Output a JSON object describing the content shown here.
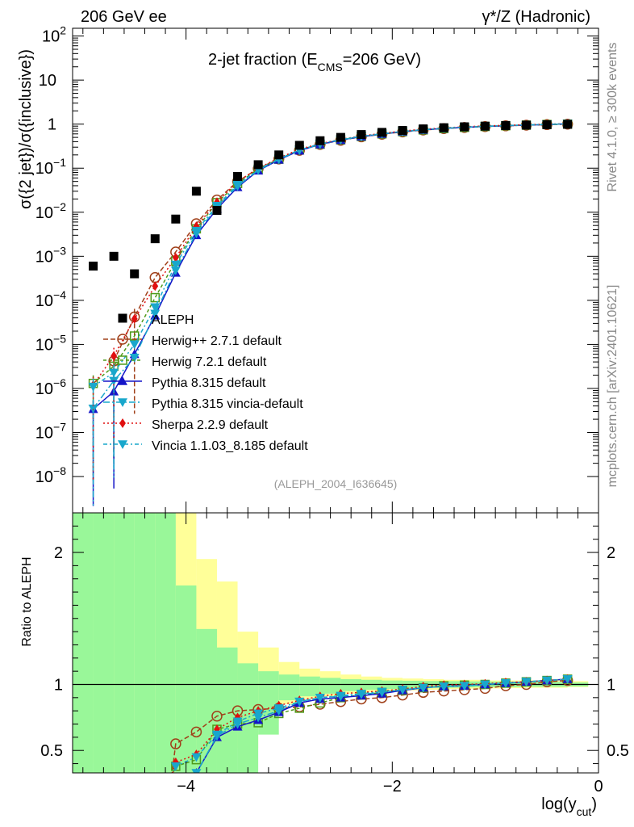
{
  "header": {
    "left": "206 GeV ee",
    "right": "γ*/Z (Hadronic)"
  },
  "side_labels": {
    "rivet": "Rivet 4.1.0, ≥ 300k events",
    "mcplots": "mcplots.cern.ch [arXiv:2401.10621]"
  },
  "chart_data": [
    {
      "type": "scatter",
      "title_main": "2-jet fraction (E",
      "title_sub": "CMS",
      "title_tail": "=206 GeV)",
      "ylabel": "σ({2 jet})/σ({inclusive})",
      "yscale": "log",
      "ylim": [
        1.5e-09,
        150
      ],
      "xlim": [
        -5.1,
        0
      ],
      "y_ticks": [
        {
          "value": 100,
          "base": "10",
          "exp": "2"
        },
        {
          "value": 10,
          "base": "10",
          "exp": ""
        },
        {
          "value": 1,
          "base": "1",
          "exp": ""
        },
        {
          "value": 0.1,
          "base": "10",
          "exp": "−1"
        },
        {
          "value": 0.01,
          "base": "10",
          "exp": "−2"
        },
        {
          "value": 0.001,
          "base": "10",
          "exp": "−3"
        },
        {
          "value": 0.0001,
          "base": "10",
          "exp": "−4"
        },
        {
          "value": 1e-05,
          "base": "10",
          "exp": "−5"
        },
        {
          "value": 1e-06,
          "base": "10",
          "exp": "−6"
        },
        {
          "value": 1e-07,
          "base": "10",
          "exp": "−7"
        },
        {
          "value": 1e-08,
          "base": "10",
          "exp": "−8"
        }
      ],
      "analysis_tag": "(ALEPH_2004_I636645)",
      "x": [
        -4.9,
        -4.7,
        -4.5,
        -4.3,
        -4.1,
        -3.9,
        -3.7,
        -3.5,
        -3.3,
        -3.1,
        -2.9,
        -2.7,
        -2.5,
        -2.3,
        -2.1,
        -1.9,
        -1.7,
        -1.5,
        -1.3,
        -1.1,
        -0.9,
        -0.7,
        -0.5,
        -0.3
      ],
      "data": {
        "name": "ALEPH",
        "values": [
          0.0006,
          0.001,
          0.0004,
          0.0025,
          0.007,
          0.03,
          0.011,
          0.065,
          0.12,
          0.2,
          0.33,
          0.42,
          0.5,
          0.58,
          0.65,
          0.72,
          0.78,
          0.83,
          0.87,
          0.9,
          0.93,
          0.95,
          0.97,
          0.99
        ]
      },
      "series": [
        {
          "name": "Herwig++ 2.7.1 default",
          "color": "#a0401a",
          "marker": "circle-open",
          "dash": "6,3",
          "values": [
            null,
            4.2e-06,
            4.2e-05,
            0.00033,
            0.00125,
            0.0055,
            0.019,
            0.05,
            0.098,
            0.162,
            0.255,
            0.345,
            0.43,
            0.515,
            0.59,
            0.665,
            0.735,
            0.79,
            0.84,
            0.88,
            0.915,
            0.945,
            0.975,
            1.0
          ]
        },
        {
          "name": "Herwig 7.2.1 default",
          "color": "#4f9a1a",
          "marker": "square-open",
          "dash": "4,3",
          "values": [
            1.3e-06,
            3.2e-06,
            1.55e-05,
            0.000115,
            0.00078,
            0.0042,
            0.0165,
            0.045,
            0.095,
            0.16,
            0.26,
            0.35,
            0.44,
            0.525,
            0.6,
            0.675,
            0.74,
            0.795,
            0.845,
            0.885,
            0.92,
            0.95,
            0.98,
            1.0
          ]
        },
        {
          "name": "Pythia 8.315 default",
          "color": "#1515c8",
          "marker": "triangle-up",
          "dash": "",
          "values": [
            3.4e-07,
            8.5e-07,
            6e-06,
            4.5e-05,
            0.00042,
            0.003,
            0.012,
            0.037,
            0.088,
            0.155,
            0.25,
            0.345,
            0.435,
            0.52,
            0.595,
            0.675,
            0.74,
            0.8,
            0.845,
            0.89,
            0.92,
            0.95,
            0.98,
            1.02
          ]
        },
        {
          "name": "Pythia 8.315 vincia-default",
          "color": "#19a7cc",
          "marker": "triangle-down",
          "dash": "8,3,2,3",
          "values": [
            3.5e-07,
            1.5e-06,
            5e-06,
            5e-05,
            0.00048,
            0.0033,
            0.013,
            0.039,
            0.09,
            0.158,
            0.255,
            0.35,
            0.44,
            0.525,
            0.6,
            0.68,
            0.745,
            0.8,
            0.85,
            0.89,
            0.925,
            0.955,
            0.985,
            1.02
          ]
        },
        {
          "name": "Sherpa 2.2.9 default",
          "color": "#e01010",
          "marker": "diamond",
          "dash": "2,3",
          "values": [
            1.2e-06,
            5.5e-06,
            3.8e-05,
            0.00021,
            0.00093,
            0.0048,
            0.017,
            0.049,
            0.1,
            0.17,
            0.27,
            0.36,
            0.45,
            0.54,
            0.615,
            0.695,
            0.765,
            0.82,
            0.87,
            0.91,
            0.94,
            0.97,
            1.0,
            1.02
          ]
        },
        {
          "name": "Vincia 1.1.03_8.185 default",
          "color": "#19a7cc",
          "marker": "triangle-down",
          "dash": "5,3,2,3",
          "values": [
            1.1e-06,
            2.3e-06,
            1e-05,
            7e-05,
            0.00065,
            0.0038,
            0.014,
            0.042,
            0.093,
            0.162,
            0.26,
            0.355,
            0.445,
            0.53,
            0.605,
            0.685,
            0.75,
            0.805,
            0.855,
            0.895,
            0.93,
            0.96,
            0.99,
            1.02
          ]
        }
      ]
    },
    {
      "type": "line",
      "ylabel": "Ratio to ALEPH",
      "xlabel_main": "log(y",
      "xlabel_sub": "cut",
      "xlabel_tail": ")",
      "ylim": [
        0.33,
        2.3
      ],
      "xlim": [
        -5.1,
        0
      ],
      "y_ticks": [
        {
          "value": 0.5,
          "label": "0.5"
        },
        {
          "value": 1,
          "label": "1"
        },
        {
          "value": 2,
          "label": "2"
        }
      ],
      "x_ticks": [
        {
          "value": -4,
          "label": "−4"
        },
        {
          "value": -2,
          "label": "−2"
        },
        {
          "value": 0,
          "label": "0"
        }
      ],
      "band_edges": [
        -5.1,
        -4.9,
        -4.7,
        -4.5,
        -4.3,
        -4.1,
        -3.9,
        -3.7,
        -3.5,
        -3.3,
        -3.1,
        -2.9,
        -2.7,
        -2.5,
        -2.3,
        -2.1,
        -1.9,
        -1.7,
        -1.5,
        -1.3,
        -1.1,
        -0.9,
        -0.7,
        -0.5,
        -0.3,
        -0.1
      ],
      "band_stat": [
        [
          0.33,
          2.3
        ],
        [
          0.33,
          2.3
        ],
        [
          0.33,
          2.3
        ],
        [
          0.33,
          2.3
        ],
        [
          0.33,
          2.3
        ],
        [
          0.33,
          1.75
        ],
        [
          0.33,
          1.42
        ],
        [
          0.33,
          1.28
        ],
        [
          0.33,
          1.16
        ],
        [
          0.62,
          1.1
        ],
        [
          0.88,
          1.075
        ],
        [
          0.91,
          1.06
        ],
        [
          0.93,
          1.05
        ],
        [
          0.95,
          1.04
        ],
        [
          0.96,
          1.035
        ],
        [
          0.965,
          1.03
        ],
        [
          0.97,
          1.028
        ],
        [
          0.975,
          1.026
        ],
        [
          0.975,
          1.025
        ],
        [
          0.978,
          1.023
        ],
        [
          0.98,
          1.022
        ],
        [
          0.98,
          1.02
        ],
        [
          0.982,
          1.02
        ],
        [
          0.982,
          1.02
        ],
        [
          0.985,
          1.015
        ]
      ],
      "band_syst": [
        [
          0.33,
          2.3
        ],
        [
          0.4,
          2.3
        ],
        [
          0.33,
          2.3
        ],
        [
          0.4,
          2.3
        ],
        [
          0.33,
          2.3
        ],
        [
          0.33,
          2.3
        ],
        [
          0.4,
          1.95
        ],
        [
          0.4,
          1.78
        ],
        [
          0.52,
          1.4
        ],
        [
          0.72,
          1.28
        ],
        [
          0.85,
          1.17
        ],
        [
          0.89,
          1.12
        ],
        [
          0.91,
          1.1
        ],
        [
          0.93,
          1.075
        ],
        [
          0.94,
          1.06
        ],
        [
          0.95,
          1.05
        ],
        [
          0.955,
          1.045
        ],
        [
          0.96,
          1.04
        ],
        [
          0.965,
          1.035
        ],
        [
          0.968,
          1.035
        ],
        [
          0.97,
          1.03
        ],
        [
          0.972,
          1.03
        ],
        [
          0.975,
          1.03
        ],
        [
          0.975,
          1.03
        ],
        [
          0.98,
          1.025
        ]
      ],
      "ratio_series": [
        {
          "name": "Herwig++ 2.7.1 default",
          "values": [
            null,
            null,
            null,
            null,
            0.55,
            0.64,
            0.76,
            0.8,
            0.81,
            0.82,
            0.83,
            0.85,
            0.87,
            0.89,
            0.9,
            0.92,
            0.94,
            0.95,
            0.96,
            0.97,
            0.99,
            1.0,
            1.02,
            1.03
          ]
        },
        {
          "name": "Herwig 7.2.1 default",
          "values": [
            null,
            null,
            null,
            null,
            0.38,
            0.43,
            0.66,
            0.7,
            0.71,
            0.78,
            0.82,
            0.86,
            0.9,
            0.92,
            0.94,
            0.955,
            0.975,
            0.99,
            0.995,
            1.0,
            1.01,
            1.02,
            1.03,
            1.04
          ]
        },
        {
          "name": "Pythia 8.315 default",
          "values": [
            null,
            null,
            null,
            null,
            null,
            0.33,
            0.6,
            0.68,
            0.73,
            0.79,
            0.86,
            0.89,
            0.9,
            0.915,
            0.93,
            0.955,
            0.975,
            0.985,
            0.99,
            1.0,
            1.01,
            1.02,
            1.03,
            1.04
          ]
        },
        {
          "name": "Pythia 8.315 vincia-default",
          "values": [
            null,
            null,
            null,
            null,
            null,
            0.33,
            0.61,
            0.7,
            0.75,
            0.8,
            0.87,
            0.9,
            0.91,
            0.925,
            0.94,
            0.96,
            0.975,
            0.985,
            0.99,
            1.0,
            1.01,
            1.02,
            1.03,
            1.04
          ]
        },
        {
          "name": "Sherpa 2.2.9 default",
          "values": [
            null,
            null,
            null,
            null,
            0.41,
            0.47,
            0.66,
            0.75,
            0.8,
            0.84,
            0.88,
            0.91,
            0.93,
            0.94,
            0.95,
            0.965,
            0.985,
            0.995,
            1.0,
            1.005,
            1.015,
            1.02,
            1.03,
            1.04
          ]
        },
        {
          "name": "Vincia 1.1.03_8.185 default",
          "values": [
            null,
            null,
            null,
            null,
            0.38,
            0.45,
            0.62,
            0.72,
            0.78,
            0.82,
            0.87,
            0.9,
            0.915,
            0.93,
            0.945,
            0.96,
            0.975,
            0.985,
            0.99,
            1.0,
            1.01,
            1.02,
            1.03,
            1.04
          ]
        }
      ]
    }
  ]
}
